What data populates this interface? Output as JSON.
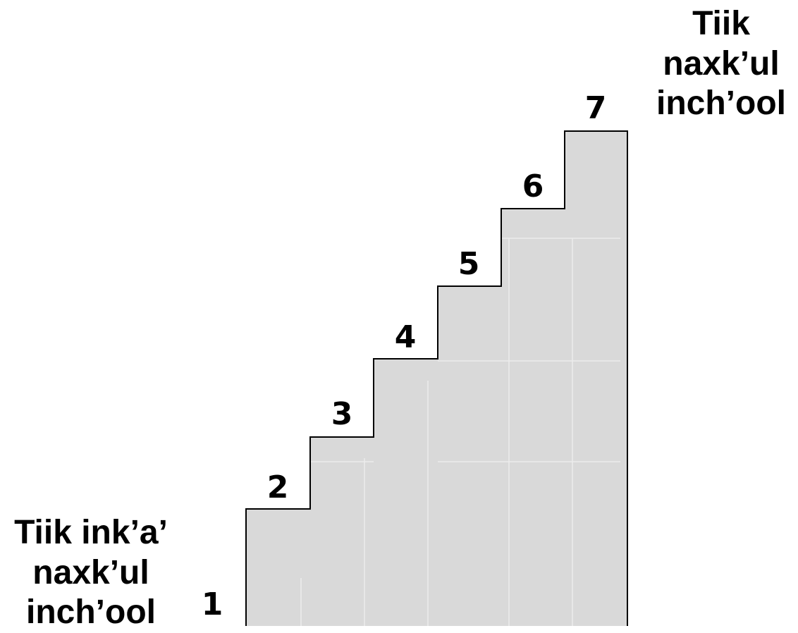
{
  "diagram": {
    "start_label": [
      "Tiik ink’a’",
      "naxk’ul",
      "inch’ool"
    ],
    "end_label": [
      "Tiik",
      "naxk’ul",
      "inch’ool"
    ],
    "steps": [
      "1",
      "2",
      "3",
      "4",
      "5",
      "6",
      "7"
    ],
    "colors": {
      "step_fill": "#d9d9d9",
      "outline": "#000000",
      "faint_line": "#ececec",
      "text": "#000000"
    }
  }
}
